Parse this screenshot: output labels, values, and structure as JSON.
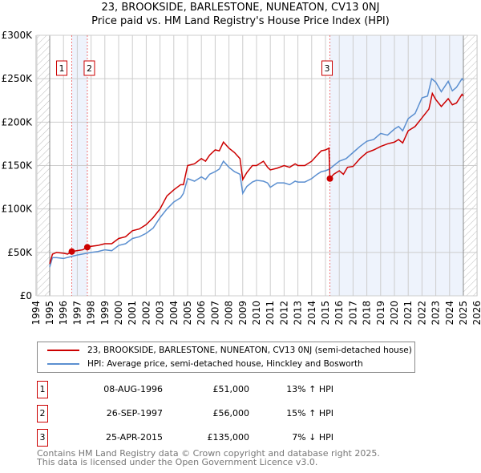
{
  "chart_data": {
    "type": "line",
    "title": "23, BROOKSIDE, BARLESTONE, NUNEATON, CV13 0NJ",
    "subtitle": "Price paid vs. HM Land Registry's House Price Index (HPI)",
    "xlim": [
      1994,
      2026
    ],
    "ylim": [
      0,
      300000
    ],
    "y_ticks": [
      {
        "v": 0,
        "label": "£0"
      },
      {
        "v": 50000,
        "label": "£50K"
      },
      {
        "v": 100000,
        "label": "£100K"
      },
      {
        "v": 150000,
        "label": "£150K"
      },
      {
        "v": 200000,
        "label": "£200K"
      },
      {
        "v": 250000,
        "label": "£250K"
      },
      {
        "v": 300000,
        "label": "£300K"
      }
    ],
    "x_ticks": [
      "1994",
      "1995",
      "1996",
      "1997",
      "1998",
      "1999",
      "2000",
      "2001",
      "2002",
      "2003",
      "2004",
      "2005",
      "2006",
      "2007",
      "2008",
      "2009",
      "2010",
      "2011",
      "2012",
      "2013",
      "2014",
      "2015",
      "2016",
      "2017",
      "2018",
      "2019",
      "2020",
      "2021",
      "2022",
      "2023",
      "2024",
      "2025",
      "2026"
    ],
    "grid": true,
    "colors": {
      "property": "#cc0000",
      "hpi": "#5b8fd0",
      "shade": "#eef3fc"
    },
    "series": [
      {
        "name": "23, BROOKSIDE, BARLESTONE, NUNEATON, CV13 0NJ (semi-detached house)",
        "color": "#cc0000",
        "x": [
          1995.0,
          1995.2,
          1995.5,
          1996.0,
          1996.3,
          1996.6,
          1997.0,
          1997.4,
          1997.73,
          1998.0,
          1998.5,
          1999.0,
          1999.5,
          2000.0,
          2000.5,
          2001.0,
          2001.5,
          2002.0,
          2002.5,
          2003.0,
          2003.5,
          2004.0,
          2004.5,
          2004.7,
          2005.0,
          2005.5,
          2006.0,
          2006.3,
          2006.6,
          2007.0,
          2007.3,
          2007.6,
          2008.0,
          2008.4,
          2008.8,
          2009.0,
          2009.3,
          2009.7,
          2010.0,
          2010.5,
          2010.8,
          2011.0,
          2011.5,
          2012.0,
          2012.4,
          2012.8,
          2013.0,
          2013.5,
          2014.0,
          2014.4,
          2014.7,
          2015.0,
          2015.25,
          2015.32,
          2015.6,
          2016.0,
          2016.3,
          2016.6,
          2017.0,
          2017.5,
          2018.0,
          2018.5,
          2019.0,
          2019.5,
          2020.0,
          2020.3,
          2020.6,
          2021.0,
          2021.5,
          2022.0,
          2022.5,
          2022.75,
          2023.0,
          2023.4,
          2023.9,
          2024.2,
          2024.5,
          2024.9,
          2025.0
        ],
        "y": [
          37000,
          48000,
          50000,
          49000,
          48000,
          51000,
          52000,
          53000,
          56000,
          57000,
          58000,
          60000,
          60000,
          66000,
          68000,
          75000,
          77000,
          82000,
          90000,
          100000,
          115000,
          122000,
          128000,
          128000,
          150000,
          152000,
          158000,
          155000,
          162000,
          168000,
          167000,
          177000,
          170000,
          165000,
          158000,
          134000,
          142000,
          150000,
          150000,
          155000,
          148000,
          145000,
          147000,
          150000,
          148000,
          152000,
          150000,
          150000,
          155000,
          162000,
          167000,
          168000,
          170000,
          135000,
          140000,
          144000,
          140000,
          148000,
          149000,
          158000,
          165000,
          168000,
          172000,
          175000,
          177000,
          180000,
          176000,
          190000,
          195000,
          205000,
          215000,
          233000,
          226000,
          218000,
          227000,
          220000,
          222000,
          232000,
          230000
        ]
      },
      {
        "name": "HPI: Average price, semi-detached house, Hinckley and Bosworth",
        "color": "#5b8fd0",
        "x": [
          1995.0,
          1995.2,
          1995.5,
          1996.0,
          1996.5,
          1997.0,
          1997.7,
          1998.0,
          1998.5,
          1999.0,
          1999.5,
          2000.0,
          2000.5,
          2001.0,
          2001.5,
          2002.0,
          2002.5,
          2003.0,
          2003.5,
          2004.0,
          2004.5,
          2004.7,
          2005.0,
          2005.5,
          2006.0,
          2006.3,
          2006.6,
          2007.0,
          2007.3,
          2007.6,
          2008.0,
          2008.4,
          2008.8,
          2009.0,
          2009.3,
          2009.7,
          2010.0,
          2010.5,
          2010.8,
          2011.0,
          2011.5,
          2012.0,
          2012.4,
          2012.8,
          2013.0,
          2013.5,
          2014.0,
          2014.4,
          2014.7,
          2015.0,
          2015.3,
          2015.6,
          2016.0,
          2016.5,
          2017.0,
          2017.5,
          2018.0,
          2018.5,
          2019.0,
          2019.5,
          2020.0,
          2020.3,
          2020.6,
          2021.0,
          2021.5,
          2022.0,
          2022.4,
          2022.7,
          2023.0,
          2023.4,
          2023.9,
          2024.2,
          2024.5,
          2024.9,
          2025.0
        ],
        "y": [
          33000,
          44000,
          44000,
          43000,
          45000,
          47000,
          49000,
          50000,
          51000,
          53000,
          52000,
          58000,
          60000,
          66000,
          68000,
          72000,
          78000,
          90000,
          100000,
          108000,
          113000,
          118000,
          135000,
          132000,
          137000,
          134000,
          140000,
          143000,
          146000,
          155000,
          148000,
          143000,
          140000,
          118000,
          126000,
          131000,
          133000,
          132000,
          130000,
          125000,
          130000,
          130000,
          128000,
          132000,
          131000,
          131000,
          135000,
          140000,
          143000,
          144000,
          146000,
          150000,
          155000,
          158000,
          165000,
          172000,
          178000,
          180000,
          187000,
          185000,
          192000,
          195000,
          190000,
          204000,
          210000,
          228000,
          230000,
          250000,
          246000,
          235000,
          247000,
          236000,
          240000,
          250000,
          248000
        ]
      }
    ],
    "sales": [
      {
        "num": "1",
        "x": 1996.6,
        "price": 51000,
        "date": "08-AUG-1996",
        "price_label": "£51,000",
        "diff": "13% ↑ HPI"
      },
      {
        "num": "2",
        "x": 1997.73,
        "price": 56000,
        "date": "26-SEP-1997",
        "price_label": "£56,000",
        "diff": "15% ↑ HPI"
      },
      {
        "num": "3",
        "x": 2015.32,
        "price": 135000,
        "date": "25-APR-2015",
        "price_label": "£135,000",
        "diff": "7% ↓ HPI"
      }
    ]
  },
  "footer": {
    "line1": "Contains HM Land Registry data © Crown copyright and database right 2025.",
    "line2": "This data is licensed under the Open Government Licence v3.0."
  }
}
